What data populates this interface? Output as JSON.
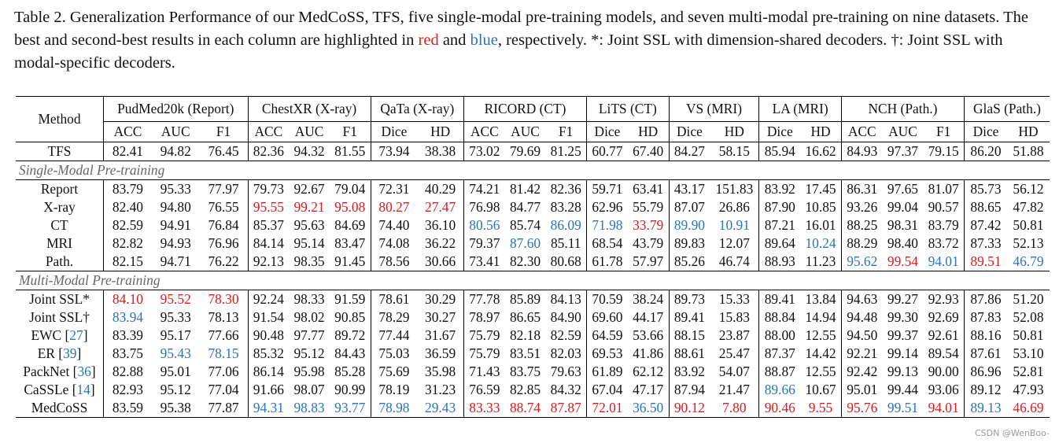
{
  "caption": {
    "p1": "Table 2. Generalization Performance of our MedCoSS, TFS, five single-modal pre-training models, and seven multi-modal pre-training on nine datasets. The best and second-best results in each column are highlighted in ",
    "red_word": "red",
    "p2": " and ",
    "blue_word": "blue",
    "p3": ", respectively. *: Joint SSL with dimension-shared decoders. †: Joint SSL with modal-specific decoders."
  },
  "colors": {
    "best": "#e0191b",
    "second": "#2b72c0",
    "section": "#666666"
  },
  "table": {
    "method_header": "Method",
    "groups": [
      "PudMed20k (Report)",
      "ChestXR (X-ray)",
      "QaTa (X-ray)",
      "RICORD (CT)",
      "LiTS (CT)",
      "VS (MRI)",
      "LA (MRI)",
      "NCH (Path.)",
      "GlaS (Path.)"
    ],
    "metrics": [
      "ACC",
      "AUC",
      "F1",
      "ACC",
      "AUC",
      "F1",
      "Dice",
      "HD",
      "ACC",
      "AUC",
      "F1",
      "Dice",
      "HD",
      "Dice",
      "HD",
      "Dice",
      "HD",
      "ACC",
      "AUC",
      "F1",
      "Dice",
      "HD"
    ],
    "tfs": {
      "name": "TFS",
      "v": [
        "82.41",
        "94.82",
        "76.45",
        "82.36",
        "94.32",
        "81.55",
        "73.94",
        "38.38",
        "73.02",
        "79.69",
        "81.25",
        "60.77",
        "67.40",
        "84.27",
        "58.15",
        "85.94",
        "16.62",
        "84.93",
        "97.37",
        "79.15",
        "86.20",
        "51.88"
      ],
      "c": []
    },
    "section_single": "Single-Modal Pre-training",
    "single": [
      {
        "name": "Report",
        "v": [
          "83.79",
          "95.33",
          "77.97",
          "79.73",
          "92.67",
          "79.04",
          "72.31",
          "40.29",
          "74.21",
          "81.42",
          "82.36",
          "59.71",
          "63.41",
          "43.17",
          "151.83",
          "83.92",
          "17.45",
          "86.31",
          "97.65",
          "81.07",
          "85.73",
          "56.12"
        ],
        "c": []
      },
      {
        "name": "X-ray",
        "v": [
          "82.40",
          "94.80",
          "76.55",
          "95.55",
          "99.21",
          "95.08",
          "80.27",
          "27.47",
          "76.98",
          "84.77",
          "83.28",
          "62.96",
          "55.79",
          "87.07",
          "26.86",
          "87.90",
          "10.85",
          "93.26",
          "99.04",
          "90.57",
          "88.65",
          "47.82"
        ],
        "c": [
          [
            3,
            "r"
          ],
          [
            4,
            "r"
          ],
          [
            5,
            "r"
          ],
          [
            6,
            "r"
          ],
          [
            7,
            "r"
          ]
        ]
      },
      {
        "name": "CT",
        "v": [
          "82.59",
          "94.91",
          "76.84",
          "85.37",
          "95.63",
          "84.69",
          "74.40",
          "36.10",
          "80.56",
          "85.74",
          "86.09",
          "71.98",
          "33.79",
          "89.90",
          "10.91",
          "87.21",
          "16.01",
          "88.25",
          "98.31",
          "83.79",
          "87.42",
          "50.81"
        ],
        "c": [
          [
            8,
            "b"
          ],
          [
            10,
            "b"
          ],
          [
            11,
            "b"
          ],
          [
            12,
            "r"
          ],
          [
            13,
            "b"
          ],
          [
            14,
            "b"
          ]
        ]
      },
      {
        "name": "MRI",
        "v": [
          "82.82",
          "94.93",
          "76.96",
          "84.14",
          "95.14",
          "83.47",
          "74.08",
          "36.22",
          "79.37",
          "87.60",
          "85.11",
          "68.54",
          "43.79",
          "89.83",
          "12.07",
          "89.64",
          "10.24",
          "88.29",
          "98.40",
          "83.72",
          "87.33",
          "52.13"
        ],
        "c": [
          [
            9,
            "b"
          ],
          [
            16,
            "b"
          ]
        ]
      },
      {
        "name": "Path.",
        "v": [
          "82.15",
          "94.71",
          "76.22",
          "92.13",
          "98.35",
          "91.45",
          "78.56",
          "30.66",
          "73.41",
          "82.30",
          "80.68",
          "61.78",
          "57.97",
          "85.26",
          "46.74",
          "88.93",
          "11.23",
          "95.62",
          "99.54",
          "94.01",
          "89.51",
          "46.79"
        ],
        "c": [
          [
            17,
            "b"
          ],
          [
            18,
            "r"
          ],
          [
            19,
            "b"
          ],
          [
            20,
            "r"
          ],
          [
            21,
            "b"
          ]
        ]
      }
    ],
    "section_multi": "Multi-Modal Pre-training",
    "multi": [
      {
        "name": "Joint SSL*",
        "cite": "",
        "v": [
          "84.10",
          "95.52",
          "78.30",
          "92.24",
          "98.33",
          "91.59",
          "78.61",
          "30.29",
          "77.78",
          "85.89",
          "84.13",
          "70.59",
          "38.24",
          "89.73",
          "15.33",
          "89.41",
          "13.84",
          "94.63",
          "99.27",
          "92.93",
          "87.86",
          "51.20"
        ],
        "c": [
          [
            0,
            "r"
          ],
          [
            1,
            "r"
          ],
          [
            2,
            "r"
          ]
        ]
      },
      {
        "name": "Joint SSL†",
        "cite": "",
        "v": [
          "83.94",
          "95.33",
          "78.13",
          "91.54",
          "98.02",
          "90.85",
          "78.29",
          "30.27",
          "78.97",
          "86.65",
          "84.90",
          "69.60",
          "44.17",
          "89.41",
          "15.83",
          "88.84",
          "14.94",
          "94.48",
          "99.30",
          "92.69",
          "87.83",
          "52.08"
        ],
        "c": [
          [
            0,
            "b"
          ]
        ]
      },
      {
        "name": "EWC",
        "cite": "27",
        "v": [
          "83.39",
          "95.17",
          "77.66",
          "90.48",
          "97.77",
          "89.72",
          "77.44",
          "31.67",
          "75.79",
          "82.18",
          "82.59",
          "64.59",
          "53.66",
          "88.15",
          "23.87",
          "88.00",
          "12.55",
          "94.50",
          "99.37",
          "92.61",
          "88.16",
          "50.81"
        ],
        "c": []
      },
      {
        "name": "ER",
        "cite": "39",
        "v": [
          "83.75",
          "95.43",
          "78.15",
          "85.32",
          "95.12",
          "84.43",
          "75.03",
          "36.59",
          "75.79",
          "83.51",
          "82.03",
          "69.53",
          "41.86",
          "88.61",
          "25.47",
          "87.37",
          "14.42",
          "92.21",
          "99.14",
          "89.54",
          "87.61",
          "53.10"
        ],
        "c": [
          [
            1,
            "b"
          ],
          [
            2,
            "b"
          ]
        ]
      },
      {
        "name": "PackNet",
        "cite": "36",
        "v": [
          "82.88",
          "95.01",
          "77.06",
          "86.14",
          "95.98",
          "85.28",
          "75.69",
          "35.98",
          "71.43",
          "83.75",
          "79.63",
          "61.89",
          "62.12",
          "83.92",
          "54.07",
          "88.87",
          "12.55",
          "92.42",
          "99.13",
          "90.00",
          "86.96",
          "52.81"
        ],
        "c": []
      },
      {
        "name": "CaSSLe",
        "cite": "14",
        "v": [
          "82.93",
          "95.12",
          "77.04",
          "91.66",
          "98.07",
          "90.99",
          "78.19",
          "31.23",
          "76.59",
          "82.85",
          "84.32",
          "67.04",
          "47.17",
          "87.94",
          "21.47",
          "89.66",
          "10.67",
          "95.01",
          "99.44",
          "93.06",
          "89.12",
          "47.93"
        ],
        "c": [
          [
            15,
            "b"
          ]
        ]
      },
      {
        "name": "MedCoSS",
        "cite": "",
        "v": [
          "83.59",
          "95.38",
          "77.87",
          "94.31",
          "98.83",
          "93.77",
          "78.98",
          "29.43",
          "83.33",
          "88.74",
          "87.87",
          "72.01",
          "36.50",
          "90.12",
          "7.80",
          "90.46",
          "9.55",
          "95.76",
          "99.51",
          "94.01",
          "89.13",
          "46.69"
        ],
        "c": [
          [
            3,
            "b"
          ],
          [
            4,
            "b"
          ],
          [
            5,
            "b"
          ],
          [
            6,
            "b"
          ],
          [
            7,
            "b"
          ],
          [
            8,
            "r"
          ],
          [
            9,
            "r"
          ],
          [
            10,
            "r"
          ],
          [
            11,
            "r"
          ],
          [
            12,
            "b"
          ],
          [
            13,
            "r"
          ],
          [
            14,
            "r"
          ],
          [
            15,
            "r"
          ],
          [
            16,
            "r"
          ],
          [
            17,
            "r"
          ],
          [
            18,
            "b"
          ],
          [
            19,
            "r"
          ],
          [
            20,
            "b"
          ],
          [
            21,
            "r"
          ]
        ]
      }
    ]
  },
  "watermark": "CSDN @WenBoo-"
}
